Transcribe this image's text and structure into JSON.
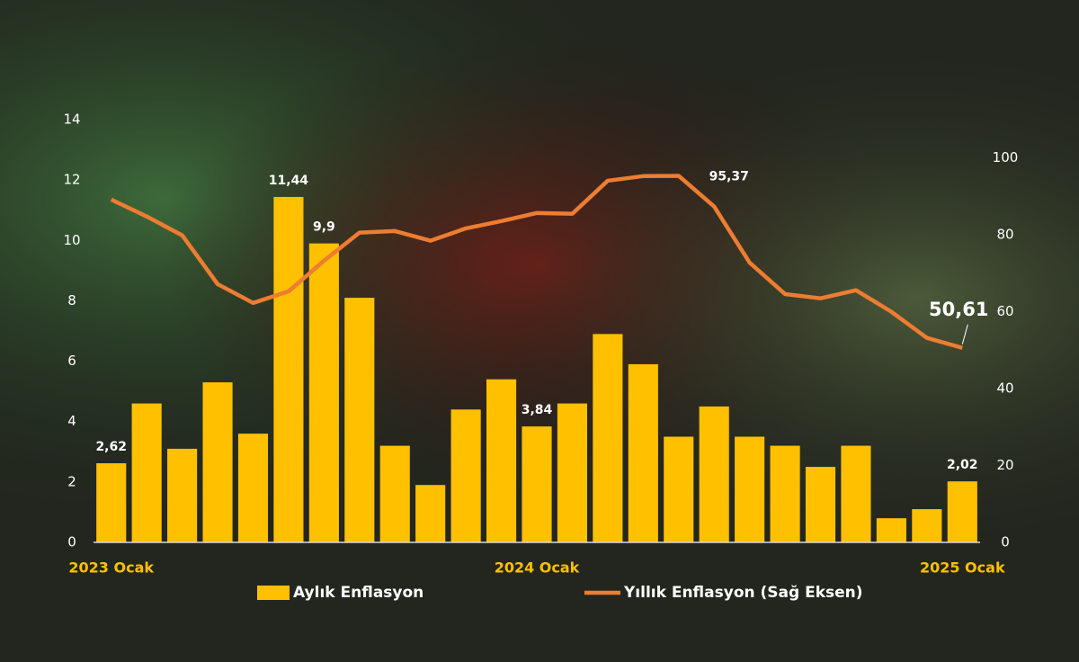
{
  "chart_data": {
    "type": "bar",
    "categories": [
      "2023 Ocak",
      null,
      null,
      null,
      null,
      null,
      null,
      null,
      null,
      null,
      null,
      null,
      "2024 Ocak",
      null,
      null,
      null,
      null,
      null,
      null,
      null,
      null,
      null,
      null,
      null,
      "2025 Ocak"
    ],
    "series": [
      {
        "name": "Aylık Enflasyon",
        "color": "#ffc000",
        "values": [
          2.62,
          4.6,
          3.1,
          5.3,
          3.6,
          11.44,
          9.9,
          8.1,
          3.2,
          1.9,
          4.4,
          5.4,
          3.84,
          4.6,
          6.9,
          5.9,
          3.5,
          4.5,
          3.5,
          3.2,
          2.5,
          3.2,
          0.8,
          1.1,
          2.02
        ],
        "value_labels": [
          "2,62",
          null,
          null,
          null,
          null,
          "11,44",
          "9,9",
          null,
          null,
          null,
          null,
          null,
          "3,84",
          null,
          null,
          null,
          null,
          null,
          null,
          null,
          null,
          null,
          null,
          null,
          "2,02"
        ]
      },
      {
        "name": "Yıllık Enflasyon (Sağ Eksen)",
        "color": "#ed7d31",
        "type": "line",
        "axis": "y2",
        "values": [
          89.2,
          84.8,
          79.9,
          67.2,
          62.3,
          65.3,
          73.3,
          80.6,
          81.0,
          78.5,
          81.7,
          83.6,
          85.7,
          85.5,
          94.1,
          95.3,
          95.37,
          87.4,
          72.8,
          64.6,
          63.5,
          65.6,
          60.0,
          53.2,
          50.61
        ],
        "value_labels": [
          null,
          null,
          null,
          null,
          null,
          null,
          null,
          null,
          null,
          null,
          null,
          null,
          null,
          null,
          null,
          null,
          "95,37",
          null,
          null,
          null,
          null,
          null,
          null,
          null,
          "50,61"
        ]
      }
    ],
    "ylim": [
      0,
      14
    ],
    "yticks": [
      0,
      2,
      4,
      6,
      8,
      10,
      12,
      14
    ],
    "y2lim": [
      0,
      110
    ],
    "y2ticks": [
      0,
      20,
      40,
      60,
      80,
      100
    ],
    "grid": false,
    "legend": "bottom"
  }
}
